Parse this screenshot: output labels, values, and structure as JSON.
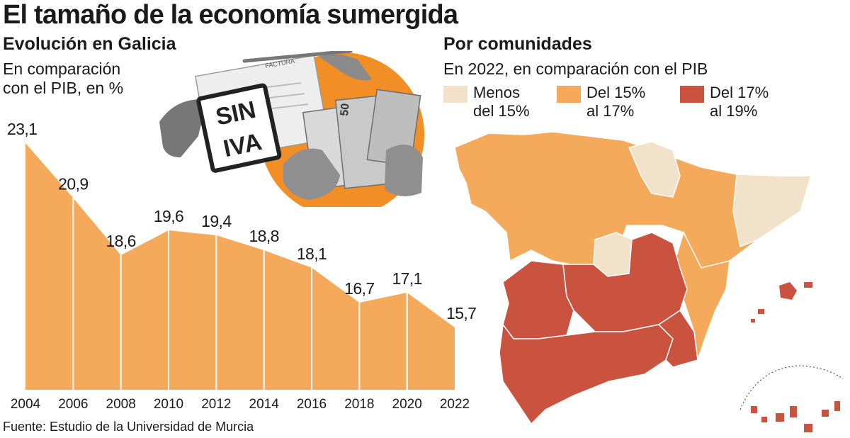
{
  "header": {
    "title": "El tamaño de la economía sumergida"
  },
  "left": {
    "subtitle": "Evolución en Galicia",
    "description_line1": "En comparación",
    "description_line2": "con el PIB, en %"
  },
  "photo": {
    "stamp_line1": "SIN",
    "stamp_line2": "IVA",
    "invoice_text": "FACTURA",
    "bill_denomination": "50"
  },
  "right": {
    "subtitle": "Por comunidades",
    "description": "En 2022, en comparación con el PIB",
    "legend": [
      {
        "label": "Menos\ndel 15%",
        "color": "#f1e2c9"
      },
      {
        "label": "Del 15%\nal 17%",
        "color": "#f4a95b"
      },
      {
        "label": "Del 17%\nal 19%",
        "color": "#c9533f"
      }
    ]
  },
  "colors": {
    "area": "#f4a95b",
    "low": "#f1e2c9",
    "mid": "#f4a95b",
    "high": "#c9533f"
  },
  "footer": {
    "source": "Fuente: Estudio de la Universidad de Murcia"
  },
  "chart_data": {
    "type": "area",
    "x": [
      "2004",
      "2006",
      "2008",
      "2010",
      "2012",
      "2014",
      "2016",
      "2018",
      "2020",
      "2022"
    ],
    "values": [
      23.1,
      20.9,
      18.6,
      19.6,
      19.4,
      18.8,
      18.1,
      16.7,
      17.1,
      15.7
    ],
    "value_labels": [
      "23,1",
      "20,9",
      "18,6",
      "19,6",
      "19,4",
      "18,8",
      "18,1",
      "16,7",
      "17,1",
      "15,7"
    ],
    "title": "Evolución en Galicia",
    "ylabel": "En comparación con el PIB, en %",
    "grid": false
  }
}
